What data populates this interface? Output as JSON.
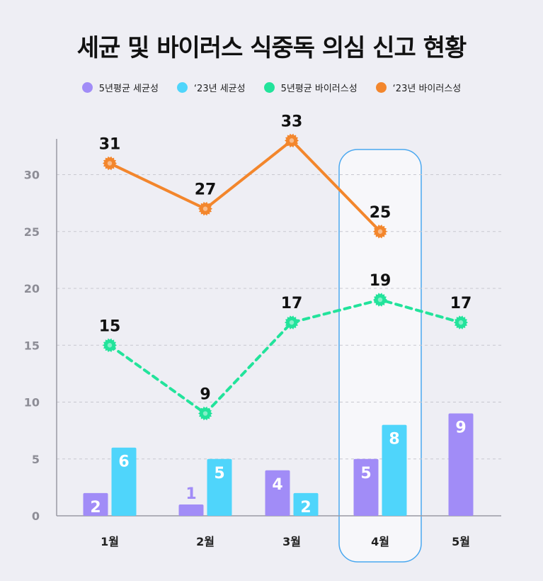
{
  "title": "세균 및 바이러스 식중독 의심 신고 현황",
  "colors": {
    "avg_bacteria": "#a18cf7",
    "y23_bacteria": "#4fd5fb",
    "avg_virus": "#22e39b",
    "y23_virus": "#f3862c",
    "highlight": "#4aa8f0",
    "axis": "#9a9aa3",
    "grid": "#c8c8d0"
  },
  "chart_data": {
    "type": "bar",
    "title": "세균 및 바이러스 식중독 의심 신고 현황",
    "categories": [
      "1월",
      "2월",
      "3월",
      "4월",
      "5월"
    ],
    "ylim": [
      0,
      33
    ],
    "yticks": [
      0,
      5,
      10,
      15,
      20,
      25,
      30
    ],
    "grid": true,
    "legend_position": "top",
    "highlight_category": "4월",
    "series": [
      {
        "name": "5년평균 세균성",
        "type": "bar",
        "color": "#a18cf7",
        "values": [
          2,
          1,
          4,
          5,
          9
        ]
      },
      {
        "name": "‘23년 세균성",
        "type": "bar",
        "color": "#4fd5fb",
        "values": [
          6,
          5,
          2,
          8,
          null
        ]
      },
      {
        "name": "5년평균 바이러스성",
        "type": "line",
        "style": "dashed",
        "color": "#22e39b",
        "values": [
          15,
          9,
          17,
          19,
          17
        ]
      },
      {
        "name": "‘23년 바이러스성",
        "type": "line",
        "style": "solid",
        "color": "#f3862c",
        "values": [
          31,
          27,
          33,
          25,
          null
        ]
      }
    ]
  }
}
